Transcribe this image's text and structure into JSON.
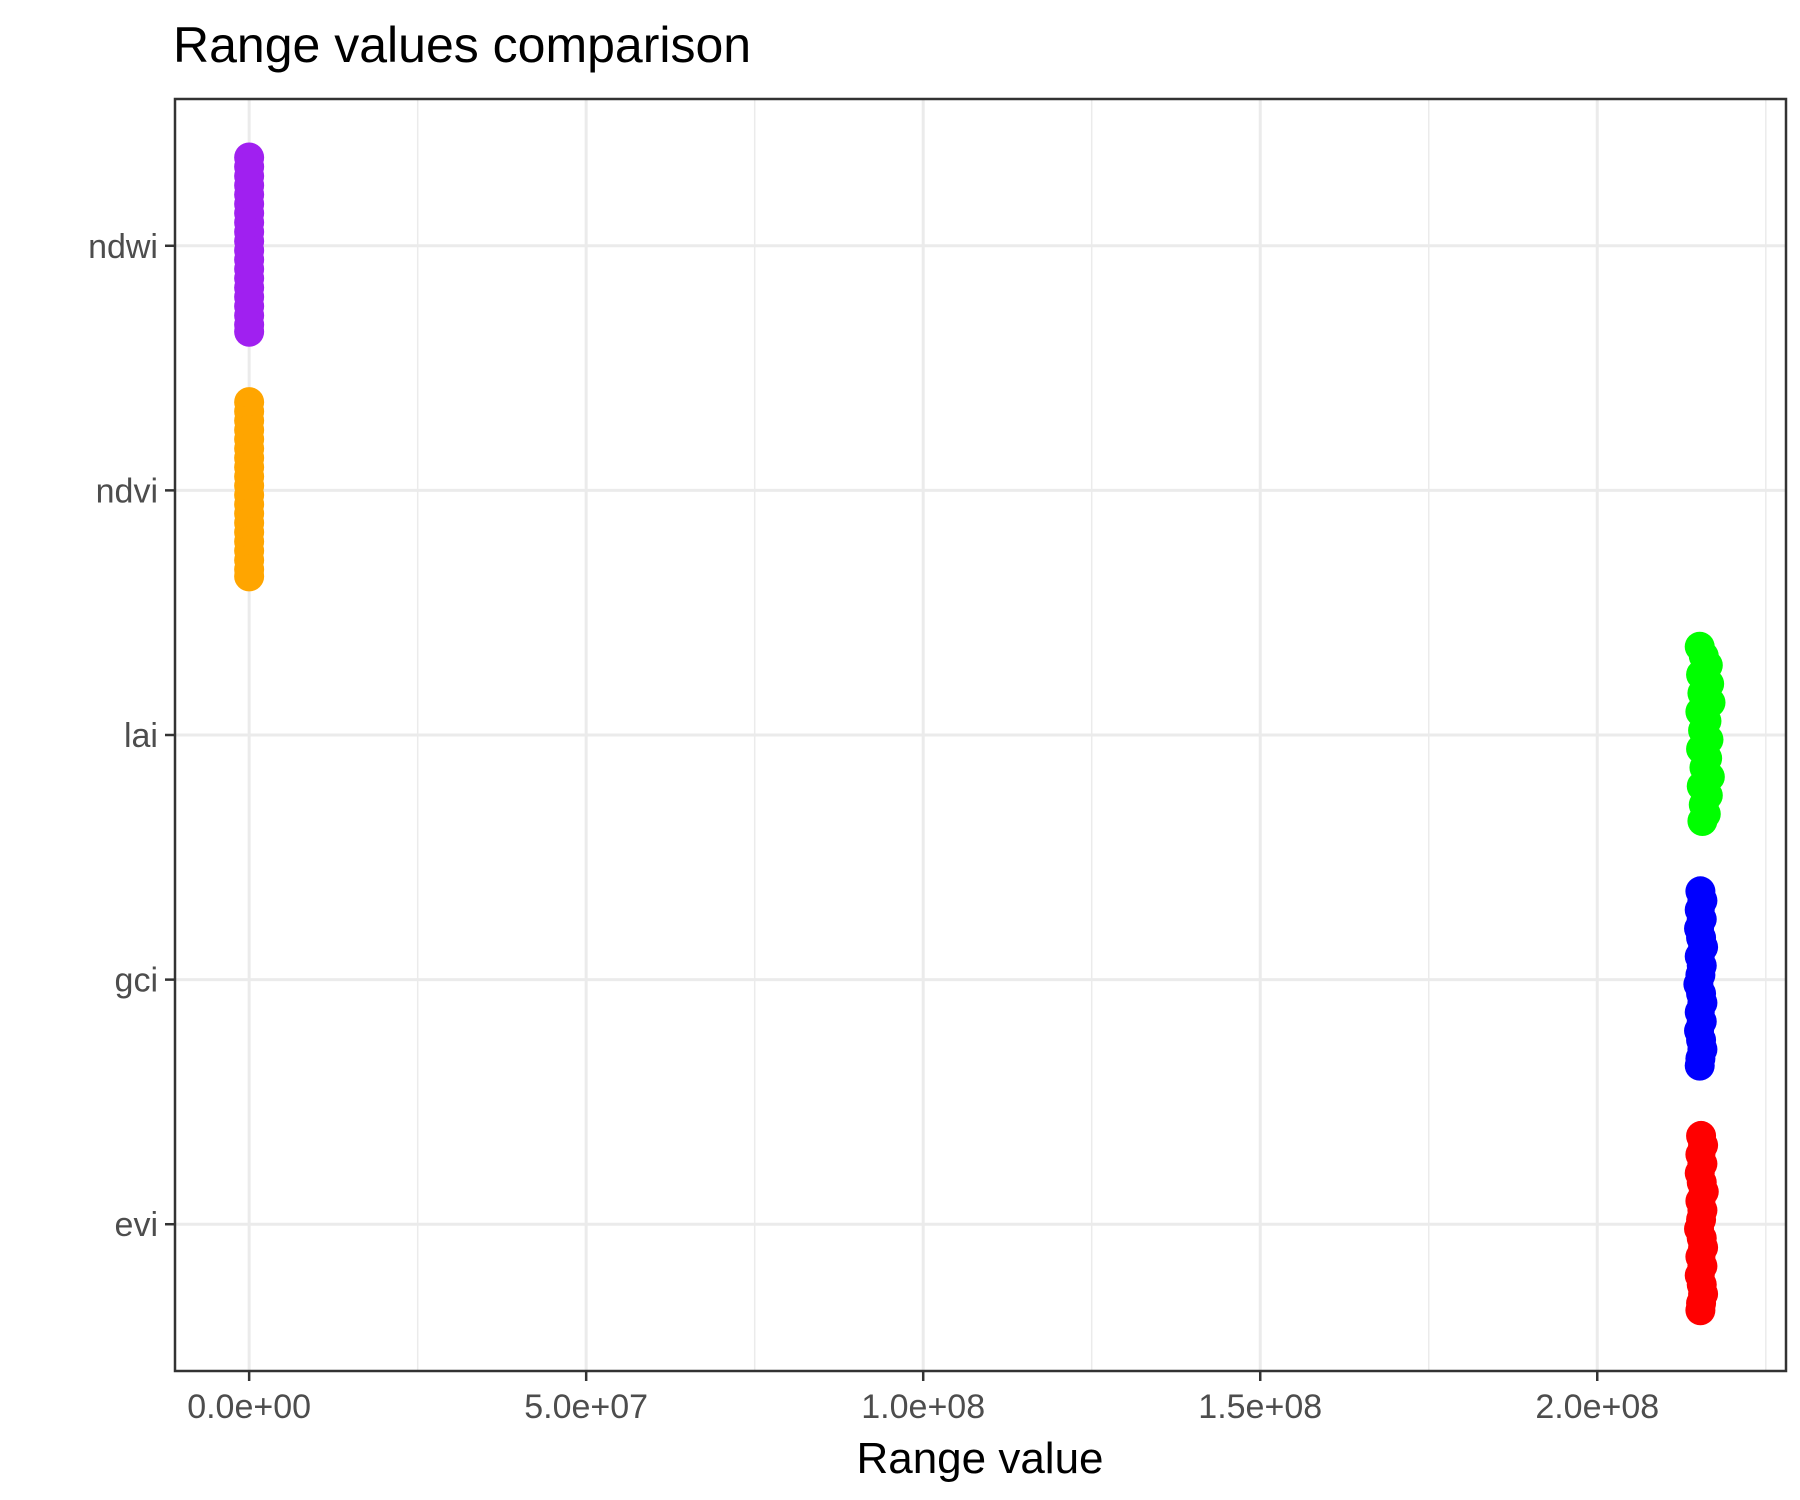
{
  "chart_data": {
    "type": "scatter",
    "title": "Range values comparison",
    "xlabel": "Range value",
    "ylabel": "",
    "xlim": [
      -11000000,
      228000000
    ],
    "x_ticks": [
      0,
      50000000,
      100000000,
      150000000,
      200000000
    ],
    "x_tick_labels": [
      "0.0e+00",
      "5.0e+07",
      "1.0e+08",
      "1.5e+08",
      "2.0e+08"
    ],
    "x_minor_ticks": [
      25000000,
      75000000,
      125000000,
      175000000,
      225000000
    ],
    "categories": [
      "evi",
      "gci",
      "lai",
      "ndvi",
      "ndwi"
    ],
    "grid": true,
    "legend": "none",
    "series": [
      {
        "category": "ndwi",
        "color": "#a020f0",
        "points": [
          {
            "x": 0,
            "y": 0.38
          },
          {
            "x": 0,
            "y": 0.34
          },
          {
            "x": 0,
            "y": 0.3
          },
          {
            "x": 0,
            "y": 0.26
          },
          {
            "x": 0,
            "y": 0.22
          },
          {
            "x": 0,
            "y": 0.18
          },
          {
            "x": 0,
            "y": 0.14
          },
          {
            "x": 0,
            "y": 0.1
          },
          {
            "x": 0,
            "y": 0.06
          },
          {
            "x": 0,
            "y": 0.02
          },
          {
            "x": 0,
            "y": -0.02
          },
          {
            "x": 0,
            "y": -0.06
          },
          {
            "x": 0,
            "y": -0.1
          },
          {
            "x": 0,
            "y": -0.14
          },
          {
            "x": 0,
            "y": -0.18
          },
          {
            "x": 0,
            "y": -0.22
          },
          {
            "x": 0,
            "y": -0.26
          },
          {
            "x": 0,
            "y": -0.3
          },
          {
            "x": 0,
            "y": -0.34
          },
          {
            "x": 0,
            "y": -0.37
          }
        ]
      },
      {
        "category": "ndvi",
        "color": "#ffa500",
        "points": [
          {
            "x": 0,
            "y": 0.38
          },
          {
            "x": 0,
            "y": 0.34
          },
          {
            "x": 0,
            "y": 0.3
          },
          {
            "x": 0,
            "y": 0.26
          },
          {
            "x": 0,
            "y": 0.22
          },
          {
            "x": 0,
            "y": 0.18
          },
          {
            "x": 0,
            "y": 0.14
          },
          {
            "x": 0,
            "y": 0.1
          },
          {
            "x": 0,
            "y": 0.06
          },
          {
            "x": 0,
            "y": 0.02
          },
          {
            "x": 0,
            "y": -0.02
          },
          {
            "x": 0,
            "y": -0.06
          },
          {
            "x": 0,
            "y": -0.1
          },
          {
            "x": 0,
            "y": -0.14
          },
          {
            "x": 0,
            "y": -0.18
          },
          {
            "x": 0,
            "y": -0.22
          },
          {
            "x": 0,
            "y": -0.26
          },
          {
            "x": 0,
            "y": -0.3
          },
          {
            "x": 0,
            "y": -0.34
          },
          {
            "x": 0,
            "y": -0.37
          }
        ]
      },
      {
        "category": "lai",
        "color": "#00ff00",
        "points": [
          {
            "x": 215200000,
            "y": 0.38
          },
          {
            "x": 215800000,
            "y": 0.34
          },
          {
            "x": 216400000,
            "y": 0.3
          },
          {
            "x": 215400000,
            "y": 0.26
          },
          {
            "x": 216600000,
            "y": 0.22
          },
          {
            "x": 215600000,
            "y": 0.18
          },
          {
            "x": 216800000,
            "y": 0.14
          },
          {
            "x": 215300000,
            "y": 0.1
          },
          {
            "x": 216200000,
            "y": 0.06
          },
          {
            "x": 215700000,
            "y": 0.02
          },
          {
            "x": 216500000,
            "y": -0.02
          },
          {
            "x": 215400000,
            "y": -0.06
          },
          {
            "x": 216300000,
            "y": -0.1
          },
          {
            "x": 215900000,
            "y": -0.14
          },
          {
            "x": 216700000,
            "y": -0.18
          },
          {
            "x": 215500000,
            "y": -0.22
          },
          {
            "x": 216400000,
            "y": -0.26
          },
          {
            "x": 215800000,
            "y": -0.3
          },
          {
            "x": 216100000,
            "y": -0.34
          },
          {
            "x": 215600000,
            "y": -0.37
          }
        ]
      },
      {
        "category": "gci",
        "color": "#0000ff",
        "points": [
          {
            "x": 215300000,
            "y": 0.38
          },
          {
            "x": 215600000,
            "y": 0.34
          },
          {
            "x": 215200000,
            "y": 0.3
          },
          {
            "x": 215500000,
            "y": 0.26
          },
          {
            "x": 215100000,
            "y": 0.22
          },
          {
            "x": 215400000,
            "y": 0.18
          },
          {
            "x": 215700000,
            "y": 0.14
          },
          {
            "x": 215200000,
            "y": 0.1
          },
          {
            "x": 215500000,
            "y": 0.06
          },
          {
            "x": 215300000,
            "y": 0.02
          },
          {
            "x": 215000000,
            "y": -0.02
          },
          {
            "x": 215400000,
            "y": -0.06
          },
          {
            "x": 215600000,
            "y": -0.1
          },
          {
            "x": 215200000,
            "y": -0.14
          },
          {
            "x": 215500000,
            "y": -0.18
          },
          {
            "x": 215100000,
            "y": -0.22
          },
          {
            "x": 215400000,
            "y": -0.26
          },
          {
            "x": 215600000,
            "y": -0.3
          },
          {
            "x": 215300000,
            "y": -0.34
          },
          {
            "x": 215200000,
            "y": -0.37
          }
        ]
      },
      {
        "category": "evi",
        "color": "#ff0000",
        "points": [
          {
            "x": 215400000,
            "y": 0.38
          },
          {
            "x": 215700000,
            "y": 0.34
          },
          {
            "x": 215300000,
            "y": 0.3
          },
          {
            "x": 215600000,
            "y": 0.26
          },
          {
            "x": 215200000,
            "y": 0.22
          },
          {
            "x": 215500000,
            "y": 0.18
          },
          {
            "x": 215800000,
            "y": 0.14
          },
          {
            "x": 215300000,
            "y": 0.1
          },
          {
            "x": 215600000,
            "y": 0.06
          },
          {
            "x": 215400000,
            "y": 0.02
          },
          {
            "x": 215100000,
            "y": -0.02
          },
          {
            "x": 215500000,
            "y": -0.06
          },
          {
            "x": 215700000,
            "y": -0.1
          },
          {
            "x": 215300000,
            "y": -0.14
          },
          {
            "x": 215600000,
            "y": -0.18
          },
          {
            "x": 215200000,
            "y": -0.22
          },
          {
            "x": 215500000,
            "y": -0.26
          },
          {
            "x": 215700000,
            "y": -0.3
          },
          {
            "x": 215400000,
            "y": -0.34
          },
          {
            "x": 215300000,
            "y": -0.37
          }
        ]
      }
    ]
  }
}
